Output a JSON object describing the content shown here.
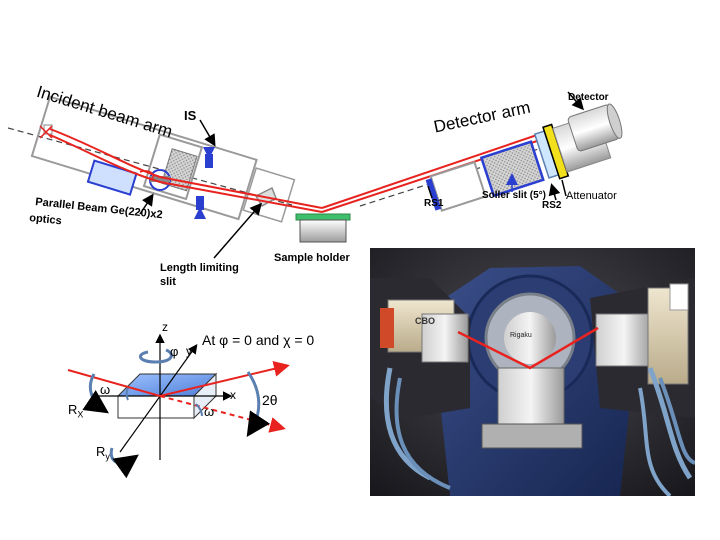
{
  "top_diagram": {
    "incident_arm_label": "Incident beam arm",
    "detector_arm_label": "Detector arm",
    "is_label": "IS",
    "optics_label_line1": "Parallel Beam Ge(220)x2",
    "optics_label_line2": "optics",
    "length_slit_line1": "Length limiting",
    "length_slit_line2": "slit",
    "sample_holder_label": "Sample holder",
    "rs1_label": "RS1",
    "soller_label": "Soller slit (5°)",
    "rs2_label": "RS2",
    "attenuator_label": "Attenuator",
    "detector_label": "Detector"
  },
  "axes_diagram": {
    "condition_prefix": "At",
    "phi_condition": "φ = 0",
    "and_word": "and",
    "chi_condition": "χ = 0",
    "z": "z",
    "y": "y",
    "x": "x",
    "phi": "φ",
    "omega_left": "ω",
    "omega_right": "ω",
    "two_theta": "2θ",
    "rx": "R",
    "rx_sub": "X",
    "ry": "R",
    "ry_sub": "y"
  },
  "photo": {
    "brand_text": "Rigaku",
    "panel_text": "CBO"
  },
  "colors": {
    "beam": "#e8231f",
    "optic_blue": "#2a3fd0",
    "sample_green": "#3fbf6b",
    "attenuator_yellow": "#f2e01c",
    "crystal_blue": "#6fa0e8",
    "arrow_blue": "#5a7fb0"
  }
}
